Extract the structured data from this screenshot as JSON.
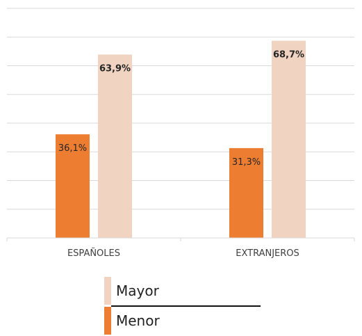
{
  "chart_data": {
    "type": "bar",
    "categories": [
      "ESPAÑOLES",
      "EXTRANJEROS"
    ],
    "series": [
      {
        "name": "Menor",
        "values": [
          36.1,
          31.3
        ],
        "labels": [
          "36,1%",
          "31,3%"
        ],
        "color": "#ED7D31"
      },
      {
        "name": "Mayor",
        "values": [
          63.9,
          68.7
        ],
        "labels": [
          "63,9%",
          "68,7%"
        ],
        "color": "#F0D3C0"
      }
    ],
    "ylim": [
      0,
      80
    ],
    "grid": true,
    "legend_position": "bottom",
    "title": "",
    "xlabel": "",
    "ylabel": ""
  }
}
